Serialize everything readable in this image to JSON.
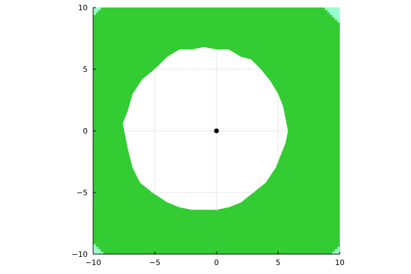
{
  "chart_data": {
    "type": "heatmap",
    "title": "",
    "xlabel": "",
    "ylabel": "",
    "xlim": [
      -10,
      10
    ],
    "ylim": [
      -10,
      10
    ],
    "aspect": "equal",
    "grid": true,
    "x_ticks": [
      -10,
      -5,
      0,
      5,
      10
    ],
    "y_ticks": [
      -10,
      -5,
      0,
      5,
      10
    ],
    "x_tick_labels": [
      "−10",
      "−5",
      "0",
      "5",
      "10"
    ],
    "y_tick_labels": [
      "−10",
      "−5",
      "0",
      "5",
      "10"
    ],
    "grid_cell_size": 0.2,
    "region_colors": {
      "outside": "#33cc33",
      "inside": "#ffffff",
      "corner_cells": "#99ffcc"
    },
    "boundary": {
      "description": "approximate outline of the white (excluded) region, in data units, listed counter-clockwise",
      "points": [
        [
          5.7,
          0.0
        ],
        [
          5.6,
          1.0
        ],
        [
          5.4,
          2.0
        ],
        [
          5.0,
          3.0
        ],
        [
          4.4,
          4.0
        ],
        [
          3.6,
          5.0
        ],
        [
          2.8,
          5.7
        ],
        [
          2.0,
          6.1
        ],
        [
          1.0,
          6.5
        ],
        [
          0.0,
          6.6
        ],
        [
          -1.0,
          6.8
        ],
        [
          -2.0,
          6.6
        ],
        [
          -3.0,
          6.5
        ],
        [
          -4.0,
          6.0
        ],
        [
          -5.0,
          5.1
        ],
        [
          -6.0,
          4.2
        ],
        [
          -6.8,
          3.0
        ],
        [
          -7.3,
          1.5
        ],
        [
          -7.6,
          0.5
        ],
        [
          -7.4,
          -0.5
        ],
        [
          -7.3,
          -1.5
        ],
        [
          -6.9,
          -3.0
        ],
        [
          -6.2,
          -4.2
        ],
        [
          -5.2,
          -5.1
        ],
        [
          -4.0,
          -5.8
        ],
        [
          -3.0,
          -6.3
        ],
        [
          -2.0,
          -6.5
        ],
        [
          -1.0,
          -6.5
        ],
        [
          0.0,
          -6.5
        ],
        [
          1.0,
          -6.2
        ],
        [
          2.0,
          -5.8
        ],
        [
          3.0,
          -5.1
        ],
        [
          4.0,
          -4.2
        ],
        [
          4.8,
          -3.0
        ],
        [
          5.3,
          -2.0
        ],
        [
          5.6,
          -1.0
        ]
      ]
    },
    "corner_patches": [
      {
        "corner": "top-left",
        "cells": [
          [
            -10,
            9.8
          ],
          [
            -9.8,
            9.8
          ],
          [
            -9.6,
            9.8
          ],
          [
            -10,
            9.6
          ],
          [
            -9.8,
            9.6
          ],
          [
            -10,
            9.4
          ]
        ]
      },
      {
        "corner": "top-right",
        "cells": [
          [
            9.8,
            9.8
          ],
          [
            9.6,
            9.8
          ],
          [
            9.4,
            9.8
          ],
          [
            9.2,
            9.8
          ],
          [
            9.0,
            9.8
          ],
          [
            8.8,
            9.8
          ],
          [
            9.8,
            9.6
          ],
          [
            9.6,
            9.6
          ],
          [
            9.4,
            9.6
          ],
          [
            9.2,
            9.6
          ],
          [
            9.0,
            9.6
          ],
          [
            9.8,
            9.4
          ],
          [
            9.6,
            9.4
          ],
          [
            9.4,
            9.4
          ],
          [
            9.2,
            9.4
          ],
          [
            9.8,
            9.2
          ],
          [
            9.6,
            9.2
          ],
          [
            9.4,
            9.2
          ],
          [
            9.8,
            9.0
          ],
          [
            9.6,
            9.0
          ],
          [
            9.8,
            8.8
          ]
        ]
      },
      {
        "corner": "bottom-left",
        "cells": [
          [
            -10,
            -10
          ],
          [
            -9.8,
            -10
          ],
          [
            -9.6,
            -10
          ],
          [
            -9.4,
            -10
          ],
          [
            -10,
            -9.8
          ],
          [
            -9.8,
            -9.8
          ],
          [
            -9.6,
            -9.8
          ],
          [
            -10,
            -9.6
          ],
          [
            -9.8,
            -9.6
          ],
          [
            -10,
            -9.4
          ]
        ]
      },
      {
        "corner": "bottom-right",
        "cells": [
          [
            9.8,
            -10
          ],
          [
            9.6,
            -10
          ],
          [
            9.4,
            -10
          ],
          [
            9.8,
            -9.8
          ],
          [
            9.6,
            -9.8
          ],
          [
            9.8,
            -9.6
          ]
        ]
      }
    ],
    "points": [
      {
        "x": 0,
        "y": 0,
        "color": "#000000"
      }
    ]
  }
}
